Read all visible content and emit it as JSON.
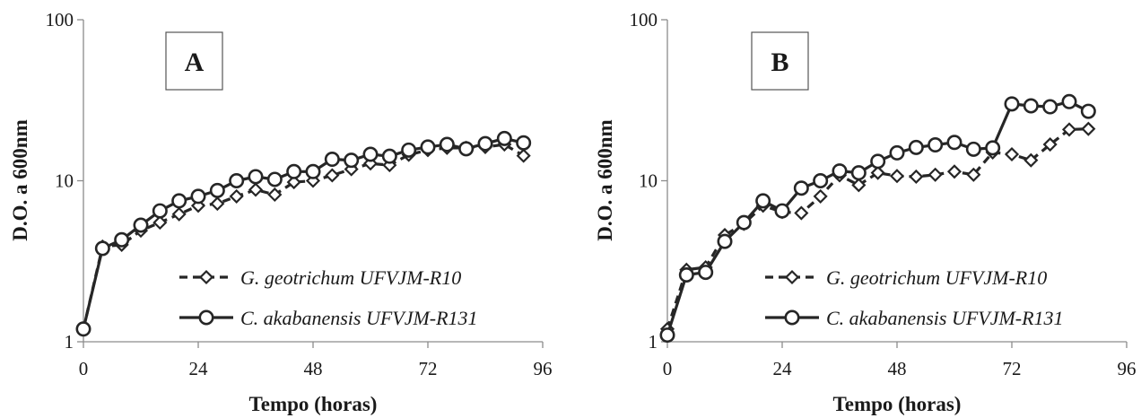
{
  "chart_data": [
    {
      "type": "line",
      "panel_label": "A",
      "xlabel": "Tempo (horas)",
      "ylabel": "D.O. a 600nm",
      "yscale": "log",
      "xlim": [
        0,
        96
      ],
      "ylim": [
        1,
        100
      ],
      "xticks": [
        "0",
        "24",
        "48",
        "72",
        "96"
      ],
      "yticks": [
        "1",
        "10",
        "100"
      ],
      "legend_position": "lower-right",
      "series": [
        {
          "name": "G. geotrichum UFVJM-R10",
          "marker": "diamond",
          "line": "dashed",
          "x": [
            0,
            4,
            8,
            12,
            16,
            20,
            24,
            28,
            32,
            36,
            40,
            44,
            48,
            52,
            56,
            60,
            64,
            68,
            72,
            76,
            80,
            84,
            88,
            92
          ],
          "y": [
            1.2,
            3.9,
            4.0,
            4.9,
            5.5,
            6.2,
            7.0,
            7.2,
            8.0,
            8.8,
            8.2,
            9.8,
            10.0,
            10.8,
            11.8,
            12.8,
            12.5,
            14.5,
            15.5,
            16.0,
            16.0,
            16.2,
            16.8,
            14.3
          ]
        },
        {
          "name": "C. akabanensis UFVJM-R131",
          "marker": "circle",
          "line": "solid",
          "x": [
            0,
            4,
            8,
            12,
            16,
            20,
            24,
            28,
            32,
            36,
            40,
            44,
            48,
            52,
            56,
            60,
            64,
            68,
            72,
            76,
            80,
            84,
            88,
            92
          ],
          "y": [
            1.2,
            3.8,
            4.3,
            5.3,
            6.5,
            7.5,
            8.0,
            8.7,
            10.0,
            10.6,
            10.2,
            11.4,
            11.4,
            13.6,
            13.4,
            14.6,
            14.2,
            15.5,
            16.2,
            16.8,
            15.8,
            17.0,
            18.3,
            17.2
          ]
        }
      ]
    },
    {
      "type": "line",
      "panel_label": "B",
      "xlabel": "Tempo (horas)",
      "ylabel": "D.O. a 600nm",
      "yscale": "log",
      "xlim": [
        0,
        96
      ],
      "ylim": [
        1,
        100
      ],
      "xticks": [
        "0",
        "24",
        "48",
        "72",
        "96"
      ],
      "yticks": [
        "1",
        "10",
        "100"
      ],
      "legend_position": "lower-right",
      "series": [
        {
          "name": "G. geotrichum UFVJM-R10",
          "marker": "diamond",
          "line": "dashed",
          "x": [
            0,
            4,
            8,
            12,
            16,
            20,
            24,
            28,
            32,
            36,
            40,
            44,
            48,
            52,
            56,
            60,
            64,
            68,
            72,
            76,
            80,
            84,
            88
          ],
          "y": [
            1.2,
            2.8,
            2.9,
            4.6,
            5.4,
            7.0,
            6.4,
            6.3,
            8.0,
            10.8,
            9.4,
            11.2,
            10.7,
            10.6,
            10.9,
            11.4,
            10.9,
            15.0,
            14.6,
            13.4,
            16.8,
            20.8,
            21.0
          ]
        },
        {
          "name": "C. akabanensis UFVJM-R131",
          "marker": "circle",
          "line": "solid",
          "x": [
            0,
            4,
            8,
            12,
            16,
            20,
            24,
            28,
            32,
            36,
            40,
            44,
            48,
            52,
            56,
            60,
            64,
            68,
            72,
            76,
            80,
            84,
            88
          ],
          "y": [
            1.1,
            2.6,
            2.7,
            4.2,
            5.5,
            7.5,
            6.5,
            9.0,
            10.0,
            11.5,
            11.2,
            13.2,
            14.9,
            16.1,
            16.7,
            17.3,
            15.7,
            16.0,
            30.0,
            29.2,
            28.8,
            31.0,
            27.0
          ]
        }
      ]
    }
  ],
  "colors": {
    "series": "#262626",
    "axis": "#8c8c8c",
    "text": "#1a1a1a",
    "background": "#ffffff"
  }
}
